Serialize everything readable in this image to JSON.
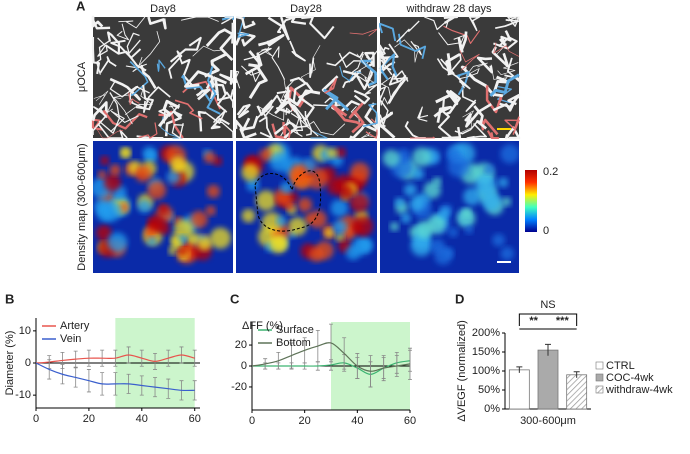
{
  "panel_a": {
    "panel": "A",
    "columns": [
      "Day8",
      "Day28",
      "withdraw 28 days"
    ],
    "rows": [
      "μOCA",
      "Density map (300-600μm)"
    ],
    "colorbar_labels": [
      "0.2",
      "0"
    ]
  },
  "chart_data": [
    {
      "type": "line",
      "panel": "B",
      "ylabel": "Diameter (%)",
      "x": [
        0,
        5,
        10,
        15,
        20,
        25,
        30,
        35,
        40,
        45,
        50,
        55,
        60
      ],
      "series": [
        {
          "name": "Artery",
          "color": "#e8554e",
          "values": [
            0,
            0.3,
            0.8,
            1.2,
            1.5,
            1.5,
            1.5,
            2.5,
            1.5,
            0.5,
            1.5,
            2.5,
            1.5
          ],
          "errors": [
            0,
            2,
            2.5,
            2.5,
            2.5,
            2.5,
            2.5,
            2.5,
            2.5,
            2.5,
            2.5,
            2.5,
            2.5
          ]
        },
        {
          "name": "Vein",
          "color": "#3a5fcd",
          "values": [
            0,
            -2,
            -3.5,
            -4.5,
            -5.5,
            -6.5,
            -6.5,
            -6.5,
            -7,
            -7.5,
            -8,
            -8.5,
            -8.5
          ],
          "errors": [
            0,
            3,
            3,
            3,
            3.5,
            3.5,
            3.5,
            3,
            3,
            3,
            3,
            3,
            3
          ]
        }
      ],
      "shade": [
        30,
        60
      ],
      "shade_color": "#ccf5cc",
      "xlim": [
        0,
        62
      ],
      "ylim": [
        -14,
        14
      ],
      "xticks": [
        0,
        20,
        40,
        60
      ],
      "yticks": [
        10,
        0,
        -10
      ],
      "legend": "top-left"
    },
    {
      "type": "line",
      "panel": "C",
      "ylabel": "ΔFF (%)",
      "x": [
        0,
        5,
        10,
        15,
        20,
        25,
        30,
        35,
        40,
        45,
        50,
        55,
        60
      ],
      "series": [
        {
          "name": "Surface",
          "color": "#3cb371",
          "values": [
            0,
            0,
            0,
            0,
            0,
            0,
            1,
            3,
            -2,
            -8,
            -2,
            3,
            5
          ],
          "errors": [
            0,
            3,
            3,
            3,
            3,
            4,
            5,
            8,
            10,
            12,
            10,
            10,
            10
          ]
        },
        {
          "name": "Bottom",
          "color": "#5e7358",
          "values": [
            0,
            2,
            5,
            10,
            15,
            19,
            22,
            12,
            0,
            -5,
            -2,
            0,
            2
          ],
          "errors": [
            0,
            5,
            8,
            12,
            12,
            15,
            18,
            15,
            12,
            15,
            12,
            10,
            15
          ]
        }
      ],
      "shade": [
        30,
        60
      ],
      "shade_color": "#ccf5cc",
      "xlim": [
        0,
        60
      ],
      "ylim": [
        -42,
        42
      ],
      "xticks": [
        0,
        20,
        40,
        60
      ],
      "yticks": [
        20,
        0,
        -20
      ],
      "legend": "top-left"
    },
    {
      "type": "bar",
      "panel": "D",
      "ylabel": "ΔVEGF (normalized)",
      "xlabel": "300-600μm",
      "categories": [
        "CTRL",
        "COC-4wk",
        "withdraw-4wk"
      ],
      "values": [
        103,
        155,
        90
      ],
      "errors": [
        8,
        15,
        8
      ],
      "colors": [
        "#ffffff",
        "#aaaaaa",
        "#dddddd"
      ],
      "hatch": [
        false,
        false,
        true
      ],
      "ylim": [
        0,
        200
      ],
      "yticks": [
        {
          "value": 0,
          "label": "0%"
        },
        {
          "value": 50,
          "label": "50%"
        },
        {
          "value": 100,
          "label": "100%"
        },
        {
          "value": 150,
          "label": "150%"
        },
        {
          "value": 200,
          "label": "200%"
        }
      ],
      "annotations": [
        "NS",
        "**",
        "***"
      ],
      "legend": "right"
    }
  ]
}
